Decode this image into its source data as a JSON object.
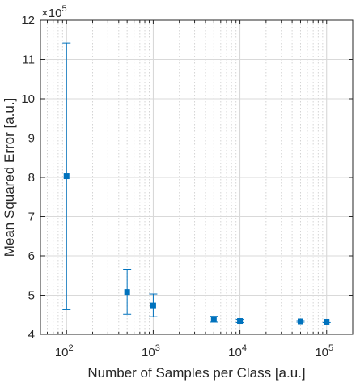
{
  "chart_data": {
    "type": "scatter",
    "title": "",
    "xlabel": "Number of Samples per Class [a.u.]",
    "ylabel": "Mean Squared Error [a.u.]",
    "x_scale": "log",
    "xlim": [
      50,
      200000
    ],
    "ylim": [
      4,
      12
    ],
    "y_multiplier_label": "×10",
    "y_multiplier_exponent": "5",
    "grid": true,
    "x_ticks": [
      {
        "base": "10",
        "exp": "2",
        "value": 100
      },
      {
        "base": "10",
        "exp": "3",
        "value": 1000
      },
      {
        "base": "10",
        "exp": "4",
        "value": 10000
      },
      {
        "base": "10",
        "exp": "5",
        "value": 100000
      }
    ],
    "y_ticks": [
      "4",
      "5",
      "6",
      "7",
      "8",
      "9",
      "10",
      "11",
      "12"
    ],
    "series": [
      {
        "color": "#0072BD",
        "points": [
          {
            "x": 100,
            "y": 8.03,
            "y_lower": 4.63,
            "y_upper": 11.42
          },
          {
            "x": 500,
            "y": 5.08,
            "y_lower": 4.51,
            "y_upper": 5.66
          },
          {
            "x": 1000,
            "y": 4.74,
            "y_lower": 4.45,
            "y_upper": 5.03
          },
          {
            "x": 5000,
            "y": 4.38,
            "y_lower": 4.31,
            "y_upper": 4.46
          },
          {
            "x": 10000,
            "y": 4.34,
            "y_lower": 4.3,
            "y_upper": 4.38
          },
          {
            "x": 50000,
            "y": 4.33,
            "y_lower": 4.31,
            "y_upper": 4.35
          },
          {
            "x": 100000,
            "y": 4.32,
            "y_lower": 4.3,
            "y_upper": 4.34
          }
        ]
      }
    ]
  }
}
